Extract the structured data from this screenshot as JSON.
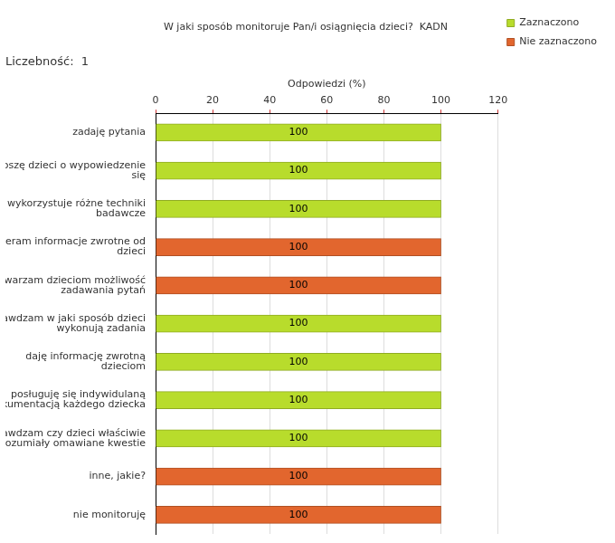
{
  "chart_data": {
    "type": "bar",
    "orientation": "horizontal",
    "stacked": true,
    "title": "W jaki sposób monitoruje Pan/i osiągnięcia dzieci?  KADN",
    "subtitle": "Liczebność:  1",
    "x_label": "Odpowiedzi (%)",
    "categories": [
      "zadaję pytania",
      "proszę dzieci o wypowiedzenie się",
      "wykorzystuje różne techniki badawcze",
      "zbieram informacje zwrotne od dzieci",
      "stwarzam dzieciom możliwość zadawania pytań",
      "sprawdzam w jaki sposób dzieci wykonują zadania",
      "daję informację zwrotną dzieciom",
      "posługuję się indywidulaną dokumentacją każdego dziecka",
      "sprawdzam czy dzieci właściwie zrozumiały omawiane kwestie",
      "inne, jakie?",
      "nie monitoruję"
    ],
    "series": [
      {
        "name": "Zaznaczono",
        "color": "#b8dc2c",
        "values": [
          100,
          100,
          100,
          0,
          0,
          100,
          100,
          100,
          100,
          0,
          0
        ]
      },
      {
        "name": "Nie zaznaczono",
        "color": "#e2662e",
        "values": [
          0,
          0,
          0,
          100,
          100,
          0,
          0,
          0,
          0,
          100,
          100
        ]
      }
    ],
    "xlim": [
      0,
      120
    ],
    "xticks": [
      0,
      20,
      40,
      60,
      80,
      100,
      120
    ],
    "grid": true,
    "legend": "right",
    "data_labels": true
  }
}
